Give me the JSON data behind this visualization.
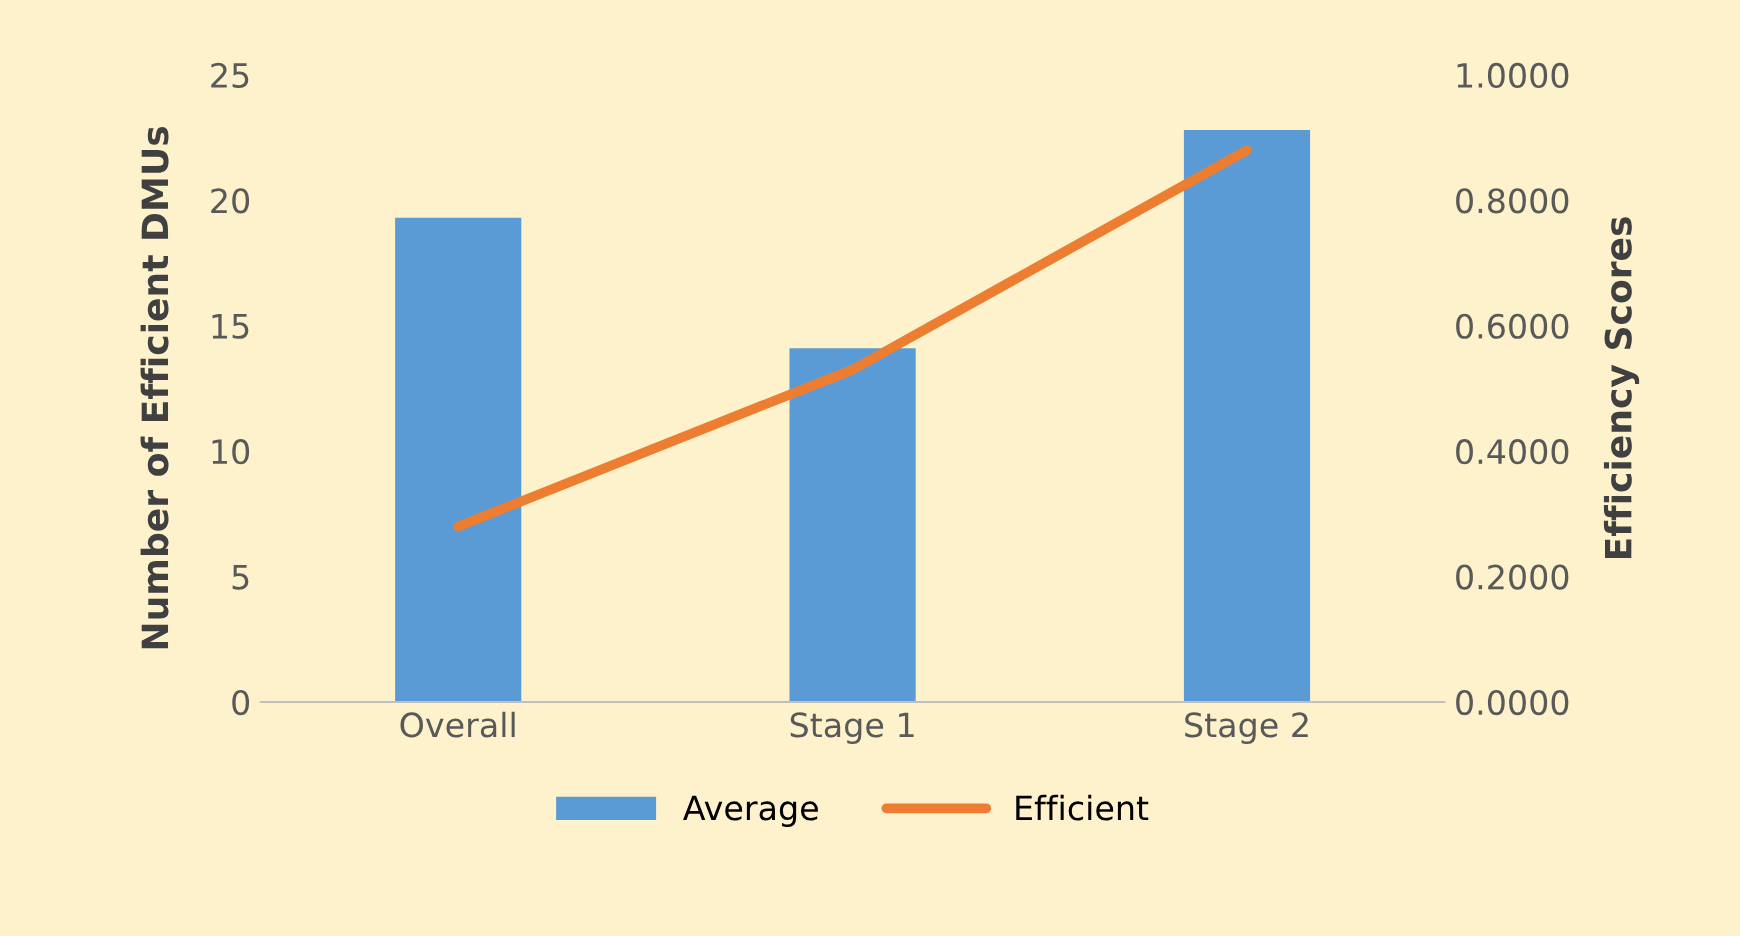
{
  "chart_data": {
    "type": "bar",
    "categories": [
      "Overall",
      "Stage 1",
      "Stage 2"
    ],
    "ylabel": "Number of Efficient DMUs",
    "y2label": "Efficiency Scores",
    "series": [
      {
        "name": "Average",
        "color": "#5b9bd5",
        "values": [
          19.3,
          14.1,
          22.8
        ]
      },
      {
        "name": "Efficient",
        "type": "line",
        "axis": "y2",
        "color": "#ed7d31",
        "values": [
          0.28,
          0.53,
          0.88
        ]
      }
    ],
    "ylim": [
      0,
      25
    ],
    "yticks": [
      0,
      5,
      10,
      15,
      20,
      25
    ],
    "y2lim": [
      0,
      1
    ],
    "y2ticks": [
      {
        "value": 0,
        "label": "0.0000"
      },
      {
        "value": 0.2,
        "label": "0.2000"
      },
      {
        "value": 0.4,
        "label": "0.4000"
      },
      {
        "value": 0.6,
        "label": "0.6000"
      },
      {
        "value": 0.8,
        "label": "0.8000"
      },
      {
        "value": 1,
        "label": "1.0000"
      }
    ],
    "legend": "bottom",
    "grid": false,
    "marker": "none",
    "line_style": "solid"
  }
}
